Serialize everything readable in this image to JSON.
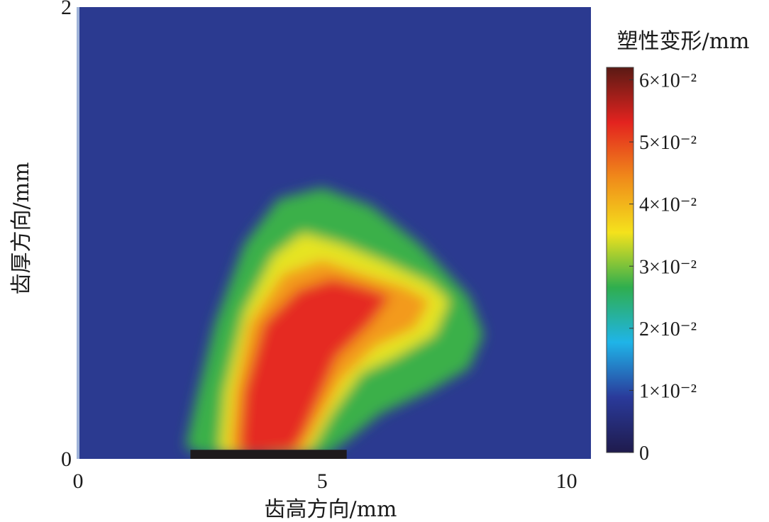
{
  "chart_data": {
    "type": "heatmap",
    "xlabel": "齿高方向/mm",
    "ylabel": "齿厚方向/mm",
    "xlim": [
      0,
      10.5
    ],
    "ylim": [
      0,
      2
    ],
    "x_ticks": [
      "0",
      "5",
      "10"
    ],
    "y_ticks": [
      "0",
      "2"
    ],
    "colorbar": {
      "title": "塑性变形/mm",
      "range": [
        0,
        0.062
      ],
      "ticks": [
        {
          "value": 0,
          "label": "0"
        },
        {
          "value": 0.01,
          "label": "1×10⁻²"
        },
        {
          "value": 0.02,
          "label": "2×10⁻²"
        },
        {
          "value": 0.03,
          "label": "3×10⁻²"
        },
        {
          "value": 0.04,
          "label": "4×10⁻²"
        },
        {
          "value": 0.05,
          "label": "5×10⁻²"
        },
        {
          "value": 0.06,
          "label": "6×10⁻²"
        }
      ],
      "colormap": [
        "#1f1b4d",
        "#2a3a9a",
        "#1fb4e8",
        "#2fae4e",
        "#f4e21c",
        "#f08a1a",
        "#e3231f",
        "#5a1a14"
      ]
    },
    "contours": [
      {
        "level": 0.03,
        "color": "#3bb04a",
        "points": [
          [
            2.2,
            0.05
          ],
          [
            2.4,
            0.25
          ],
          [
            2.8,
            0.6
          ],
          [
            3.4,
            0.95
          ],
          [
            4.1,
            1.15
          ],
          [
            5.0,
            1.2
          ],
          [
            6.0,
            1.12
          ],
          [
            7.0,
            0.95
          ],
          [
            8.0,
            0.72
          ],
          [
            8.3,
            0.55
          ],
          [
            8.0,
            0.4
          ],
          [
            7.2,
            0.3
          ],
          [
            6.2,
            0.2
          ],
          [
            5.5,
            0.08
          ],
          [
            5.1,
            0.02
          ],
          [
            2.6,
            0.02
          ]
        ]
      },
      {
        "level": 0.04,
        "color": "#e6e422",
        "points": [
          [
            2.9,
            0.05
          ],
          [
            3.0,
            0.3
          ],
          [
            3.4,
            0.65
          ],
          [
            4.0,
            0.9
          ],
          [
            4.6,
            1.0
          ],
          [
            5.4,
            0.95
          ],
          [
            6.3,
            0.87
          ],
          [
            7.2,
            0.78
          ],
          [
            7.6,
            0.7
          ],
          [
            7.3,
            0.55
          ],
          [
            6.5,
            0.45
          ],
          [
            5.8,
            0.38
          ],
          [
            5.2,
            0.2
          ],
          [
            4.8,
            0.05
          ],
          [
            4.6,
            0.02
          ],
          [
            3.0,
            0.02
          ]
        ]
      },
      {
        "level": 0.045,
        "color": "#f39a1f",
        "points": [
          [
            3.1,
            0.05
          ],
          [
            3.2,
            0.3
          ],
          [
            3.5,
            0.6
          ],
          [
            4.2,
            0.82
          ],
          [
            5.0,
            0.88
          ],
          [
            5.8,
            0.82
          ],
          [
            6.7,
            0.76
          ],
          [
            7.2,
            0.7
          ],
          [
            6.9,
            0.58
          ],
          [
            6.1,
            0.5
          ],
          [
            5.4,
            0.35
          ],
          [
            4.9,
            0.15
          ],
          [
            4.6,
            0.03
          ],
          [
            3.3,
            0.02
          ]
        ]
      },
      {
        "level": 0.05,
        "color": "#e52a20",
        "points": [
          [
            3.3,
            0.04
          ],
          [
            3.4,
            0.3
          ],
          [
            3.8,
            0.6
          ],
          [
            4.5,
            0.75
          ],
          [
            5.2,
            0.8
          ],
          [
            5.9,
            0.76
          ],
          [
            6.4,
            0.72
          ],
          [
            6.0,
            0.6
          ],
          [
            5.3,
            0.45
          ],
          [
            4.9,
            0.25
          ],
          [
            4.6,
            0.1
          ],
          [
            4.4,
            0.03
          ],
          [
            3.6,
            0.02
          ]
        ]
      }
    ],
    "base_strip": {
      "level": 0.062,
      "color": "#1e1a1c",
      "x": [
        2.3,
        5.5
      ],
      "y": [
        0,
        0.04
      ]
    },
    "background_color": "#2b3a90"
  }
}
